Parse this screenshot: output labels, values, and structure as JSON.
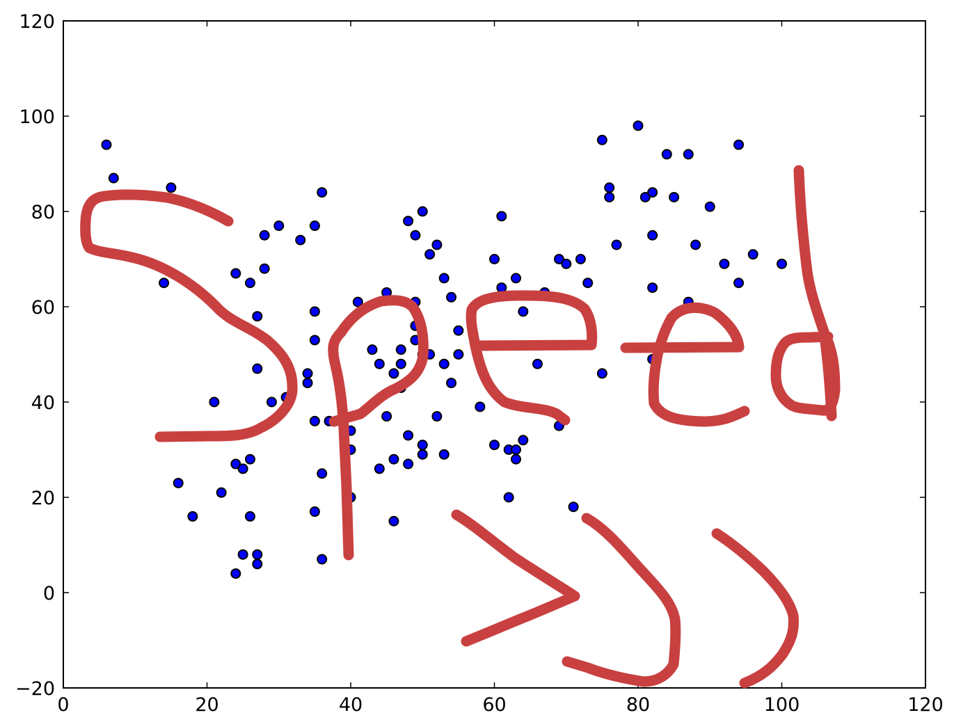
{
  "chart_data": {
    "type": "scatter",
    "title": "",
    "xlabel": "",
    "ylabel": "",
    "xlim": [
      0,
      120
    ],
    "ylim": [
      -20,
      120
    ],
    "x_ticks": [
      "0",
      "20",
      "40",
      "60",
      "80",
      "100",
      "120"
    ],
    "y_ticks": [
      "−20",
      "0",
      "20",
      "40",
      "60",
      "80",
      "100",
      "120"
    ],
    "grid": false,
    "marker_color": "#0000ff",
    "annotation": {
      "text": "Speed >>>",
      "color": "#c94040",
      "style": "handwritten"
    },
    "points": [
      [
        6,
        94
      ],
      [
        7,
        87
      ],
      [
        15,
        85
      ],
      [
        14,
        65
      ],
      [
        16,
        23
      ],
      [
        18,
        16
      ],
      [
        21,
        40
      ],
      [
        22,
        21
      ],
      [
        24,
        67
      ],
      [
        24,
        27
      ],
      [
        24,
        4
      ],
      [
        25,
        26
      ],
      [
        25,
        8
      ],
      [
        26,
        65
      ],
      [
        26,
        28
      ],
      [
        26,
        16
      ],
      [
        27,
        58
      ],
      [
        27,
        47
      ],
      [
        27,
        8
      ],
      [
        27,
        6
      ],
      [
        28,
        75
      ],
      [
        28,
        68
      ],
      [
        29,
        40
      ],
      [
        30,
        77
      ],
      [
        31,
        41
      ],
      [
        33,
        74
      ],
      [
        34,
        46
      ],
      [
        34,
        44
      ],
      [
        35,
        77
      ],
      [
        35,
        59
      ],
      [
        35,
        53
      ],
      [
        35,
        36
      ],
      [
        35,
        17
      ],
      [
        36,
        84
      ],
      [
        36,
        25
      ],
      [
        36,
        7
      ],
      [
        37,
        36
      ],
      [
        40,
        34
      ],
      [
        40,
        30
      ],
      [
        40,
        20
      ],
      [
        41,
        61
      ],
      [
        43,
        51
      ],
      [
        44,
        48
      ],
      [
        44,
        26
      ],
      [
        45,
        63
      ],
      [
        45,
        37
      ],
      [
        46,
        46
      ],
      [
        46,
        28
      ],
      [
        46,
        15
      ],
      [
        47,
        51
      ],
      [
        47,
        48
      ],
      [
        47,
        43
      ],
      [
        48,
        78
      ],
      [
        48,
        33
      ],
      [
        48,
        27
      ],
      [
        49,
        75
      ],
      [
        49,
        61
      ],
      [
        49,
        56
      ],
      [
        49,
        53
      ],
      [
        50,
        80
      ],
      [
        50,
        50
      ],
      [
        50,
        31
      ],
      [
        50,
        29
      ],
      [
        51,
        71
      ],
      [
        51,
        50
      ],
      [
        52,
        73
      ],
      [
        52,
        37
      ],
      [
        53,
        66
      ],
      [
        53,
        48
      ],
      [
        53,
        29
      ],
      [
        54,
        62
      ],
      [
        54,
        44
      ],
      [
        55,
        55
      ],
      [
        55,
        50
      ],
      [
        58,
        39
      ],
      [
        60,
        70
      ],
      [
        60,
        31
      ],
      [
        61,
        79
      ],
      [
        61,
        64
      ],
      [
        62,
        30
      ],
      [
        62,
        20
      ],
      [
        63,
        66
      ],
      [
        63,
        30
      ],
      [
        63,
        28
      ],
      [
        64,
        59
      ],
      [
        64,
        32
      ],
      [
        66,
        48
      ],
      [
        67,
        63
      ],
      [
        69,
        70
      ],
      [
        69,
        35
      ],
      [
        70,
        69
      ],
      [
        71,
        18
      ],
      [
        72,
        70
      ],
      [
        73,
        65
      ],
      [
        75,
        95
      ],
      [
        75,
        46
      ],
      [
        76,
        85
      ],
      [
        76,
        83
      ],
      [
        77,
        73
      ],
      [
        80,
        98
      ],
      [
        81,
        83
      ],
      [
        82,
        84
      ],
      [
        82,
        75
      ],
      [
        82,
        64
      ],
      [
        82,
        49
      ],
      [
        84,
        92
      ],
      [
        85,
        83
      ],
      [
        87,
        92
      ],
      [
        87,
        61
      ],
      [
        88,
        73
      ],
      [
        90,
        81
      ],
      [
        92,
        69
      ],
      [
        94,
        94
      ],
      [
        94,
        65
      ],
      [
        96,
        71
      ],
      [
        100,
        69
      ]
    ]
  }
}
